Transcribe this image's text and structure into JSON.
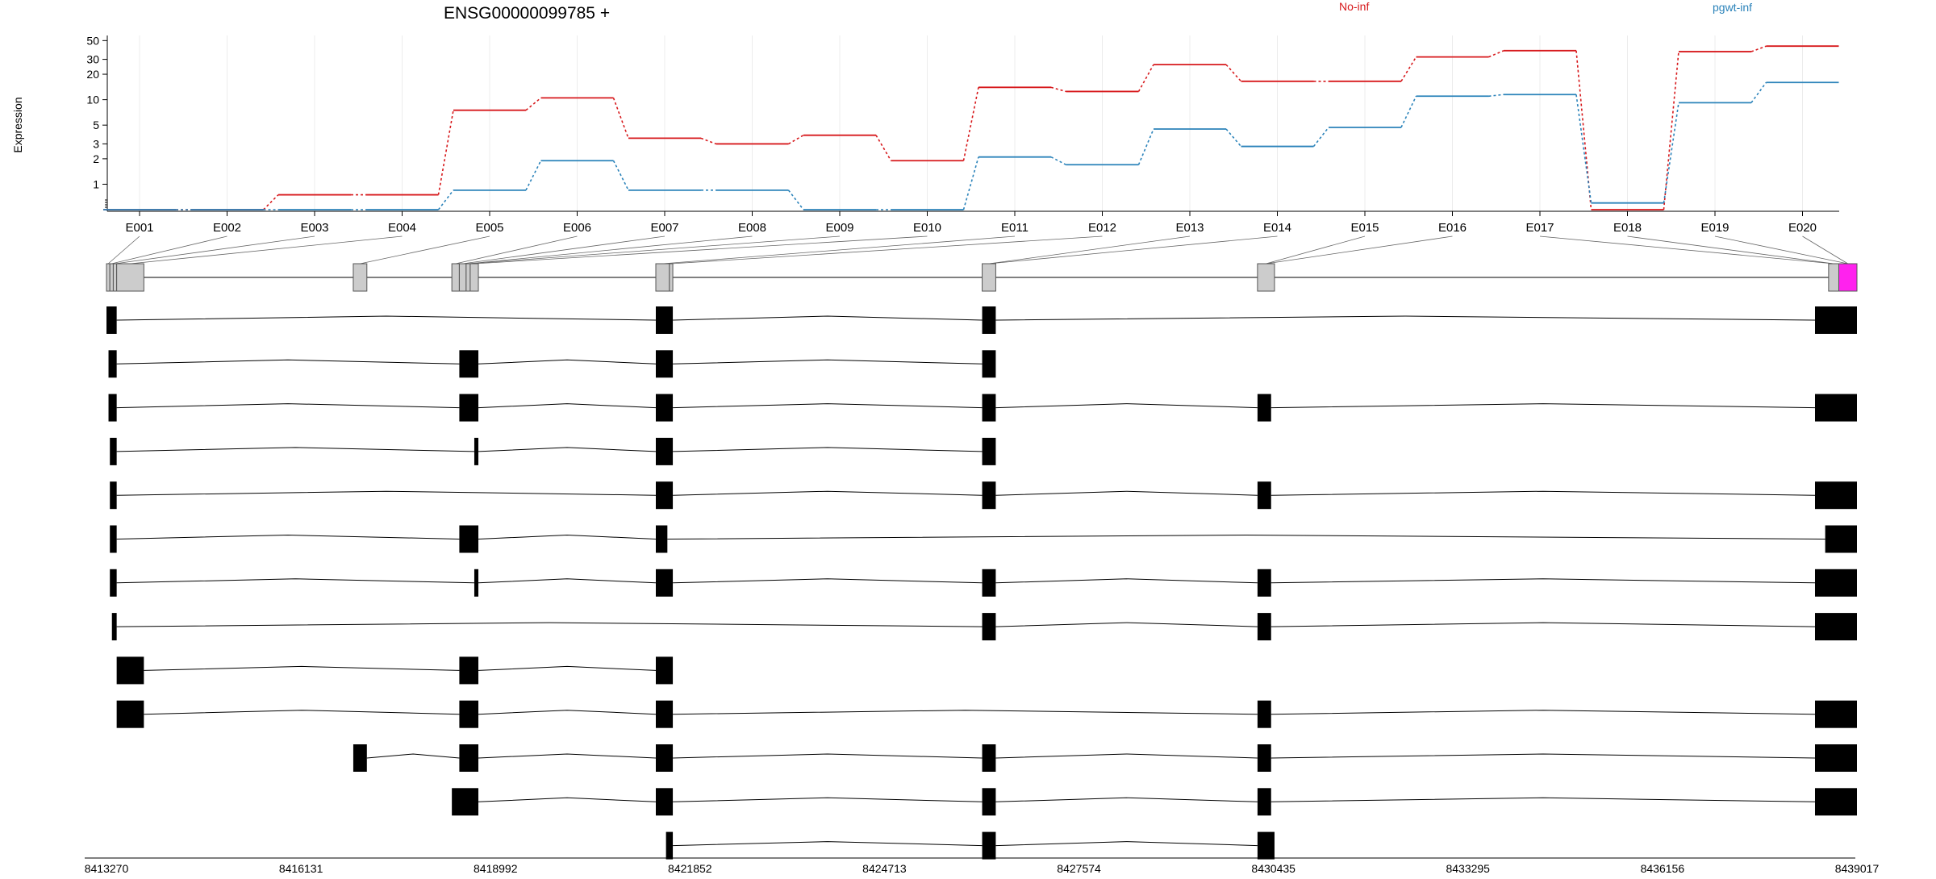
{
  "chart_data": {
    "type": "line",
    "title": "ENSG00000099785 +",
    "ylabel": "Expression",
    "y_scale": "log",
    "y_ticks": [
      1,
      2,
      3,
      5,
      10,
      20,
      30,
      50
    ],
    "ylim": [
      0.5,
      55
    ],
    "grid": true,
    "legend_placement": "top-right",
    "categories": [
      "E001",
      "E002",
      "E003",
      "E004",
      "E005",
      "E006",
      "E007",
      "E008",
      "E009",
      "E010",
      "E011",
      "E012",
      "E013",
      "E014",
      "E015",
      "E016",
      "E017",
      "E018",
      "E019",
      "E020"
    ],
    "series": [
      {
        "name": "No-inf",
        "color": "#d7191c",
        "values": [
          0.5,
          0.5,
          0.75,
          0.75,
          7.5,
          10.5,
          3.5,
          3.0,
          3.8,
          1.9,
          14.0,
          12.5,
          26.0,
          16.5,
          16.5,
          32.0,
          38.0,
          0.5,
          37.0,
          43.0
        ]
      },
      {
        "name": "pgwt-inf",
        "color": "#2b83ba",
        "values": [
          0.5,
          0.5,
          0.5,
          0.5,
          0.85,
          1.9,
          0.85,
          0.85,
          0.5,
          0.5,
          2.1,
          1.7,
          4.5,
          2.8,
          4.7,
          11.0,
          11.5,
          0.6,
          9.2,
          16.0
        ]
      }
    ]
  },
  "gene_model": {
    "coordinate_ticks": [
      "8413270",
      "8416131",
      "8418992",
      "8421852",
      "8424713",
      "8427574",
      "8430435",
      "8433295",
      "8436156",
      "8439017"
    ],
    "coord_min": 8413270,
    "coord_max": 8439017,
    "bin_color": "#cccccc",
    "highlight_color": "#ff22ee",
    "exon_bins": [
      [
        8413270,
        8413320
      ],
      [
        8413320,
        8413370
      ],
      [
        8413370,
        8413420
      ],
      [
        8413420,
        8413820
      ],
      [
        8416900,
        8417100
      ],
      [
        8418350,
        8418460
      ],
      [
        8418460,
        8418560
      ],
      [
        8418560,
        8418620
      ],
      [
        8418620,
        8418740
      ],
      [
        8421350,
        8421550
      ],
      [
        8421550,
        8421600
      ],
      [
        8426150,
        8426350
      ],
      [
        8430200,
        8430450
      ],
      [
        8438600,
        8438750
      ],
      [
        8438750,
        8439017
      ]
    ],
    "highlight_bin_index": 14,
    "bin_exon_links": [
      0,
      1,
      2,
      3,
      4,
      5,
      6,
      7,
      7,
      8,
      9,
      10,
      11,
      11,
      12,
      12,
      13,
      13,
      14,
      14
    ],
    "transcripts": [
      [
        [
          8413270,
          8413420
        ],
        [
          8421350,
          8421600
        ],
        [
          8426150,
          8426350
        ],
        [
          8438400,
          8439017
        ]
      ],
      [
        [
          8413300,
          8413420
        ],
        [
          8418460,
          8418740
        ],
        [
          8421350,
          8421600
        ],
        [
          8426150,
          8426350
        ]
      ],
      [
        [
          8413300,
          8413420
        ],
        [
          8418460,
          8418740
        ],
        [
          8421350,
          8421600
        ],
        [
          8426150,
          8426350
        ],
        [
          8430200,
          8430400
        ],
        [
          8438400,
          8439017
        ]
      ],
      [
        [
          8413320,
          8413420
        ],
        [
          8418680,
          8418740
        ],
        [
          8421350,
          8421600
        ],
        [
          8426150,
          8426350
        ]
      ],
      [
        [
          8413320,
          8413420
        ],
        [
          8421350,
          8421600
        ],
        [
          8426150,
          8426350
        ],
        [
          8430200,
          8430400
        ],
        [
          8438400,
          8439017
        ]
      ],
      [
        [
          8413320,
          8413420
        ],
        [
          8418460,
          8418740
        ],
        [
          8421350,
          8421520
        ],
        [
          8438550,
          8439017
        ]
      ],
      [
        [
          8413320,
          8413420
        ],
        [
          8418680,
          8418740
        ],
        [
          8421350,
          8421600
        ],
        [
          8426150,
          8426350
        ],
        [
          8430200,
          8430400
        ],
        [
          8438400,
          8439017
        ]
      ],
      [
        [
          8413350,
          8413420
        ],
        [
          8426150,
          8426350
        ],
        [
          8430200,
          8430400
        ],
        [
          8438400,
          8439017
        ]
      ],
      [
        [
          8413420,
          8413820
        ],
        [
          8418460,
          8418740
        ],
        [
          8421350,
          8421600
        ]
      ],
      [
        [
          8413420,
          8413820
        ],
        [
          8418460,
          8418740
        ],
        [
          8421350,
          8421600
        ],
        [
          8430200,
          8430400
        ],
        [
          8438400,
          8439017
        ]
      ],
      [
        [
          8416900,
          8417100
        ],
        [
          8418460,
          8418740
        ],
        [
          8421350,
          8421600
        ],
        [
          8426150,
          8426350
        ],
        [
          8430200,
          8430400
        ],
        [
          8438400,
          8439017
        ]
      ],
      [
        [
          8418350,
          8418740
        ],
        [
          8421350,
          8421600
        ],
        [
          8426150,
          8426350
        ],
        [
          8430200,
          8430400
        ],
        [
          8438400,
          8439017
        ]
      ],
      [
        [
          8421500,
          8421600
        ],
        [
          8426150,
          8426350
        ],
        [
          8430200,
          8430450
        ]
      ]
    ]
  }
}
